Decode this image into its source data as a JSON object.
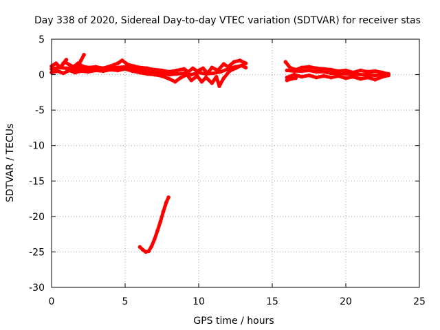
{
  "chart_data": {
    "type": "line",
    "title": "Day 338 of 2020, Sidereal Day-to-day VTEC variation (SDTVAR) for receiver stas",
    "xlabel": "GPS time / hours",
    "ylabel": "SDTVAR / TECUs",
    "xlim": [
      0,
      25
    ],
    "ylim": [
      -30,
      5
    ],
    "xticks": [
      0,
      5,
      10,
      15,
      20,
      25
    ],
    "yticks": [
      5,
      0,
      -5,
      -10,
      -15,
      -20,
      -25,
      -30
    ],
    "grid": true,
    "color": "#ff0000",
    "series": [
      {
        "name": "main-band-upper",
        "points": [
          [
            0.0,
            1.2
          ],
          [
            0.3,
            1.6
          ],
          [
            0.6,
            1.0
          ],
          [
            0.9,
            1.8
          ],
          [
            1.2,
            1.4
          ],
          [
            1.5,
            1.1
          ],
          [
            1.8,
            1.6
          ],
          [
            2.1,
            1.2
          ],
          [
            2.5,
            1.0
          ],
          [
            3.0,
            1.1
          ],
          [
            3.5,
            0.9
          ],
          [
            4.0,
            1.2
          ],
          [
            4.5,
            1.6
          ],
          [
            4.8,
            2.0
          ],
          [
            5.2,
            1.4
          ],
          [
            5.6,
            1.2
          ],
          [
            6.0,
            1.0
          ],
          [
            6.5,
            0.9
          ],
          [
            7.0,
            0.7
          ],
          [
            7.5,
            0.6
          ],
          [
            8.0,
            0.4
          ],
          [
            8.5,
            0.6
          ],
          [
            9.0,
            0.8
          ],
          [
            9.3,
            0.4
          ],
          [
            9.6,
            0.9
          ],
          [
            9.9,
            0.5
          ],
          [
            10.3,
            0.9
          ],
          [
            10.6,
            0.2
          ],
          [
            10.9,
            1.0
          ],
          [
            11.3,
            0.6
          ],
          [
            11.7,
            1.5
          ],
          [
            12.0,
            1.1
          ],
          [
            12.4,
            1.8
          ],
          [
            12.8,
            2.0
          ],
          [
            13.2,
            1.6
          ]
        ]
      },
      {
        "name": "main-band-lower",
        "points": [
          [
            0.0,
            0.3
          ],
          [
            0.4,
            0.5
          ],
          [
            0.8,
            0.2
          ],
          [
            1.2,
            0.6
          ],
          [
            1.6,
            0.3
          ],
          [
            2.0,
            0.5
          ],
          [
            2.5,
            0.4
          ],
          [
            3.0,
            0.6
          ],
          [
            3.5,
            0.5
          ],
          [
            4.0,
            0.7
          ],
          [
            4.5,
            0.6
          ],
          [
            5.0,
            0.8
          ],
          [
            5.5,
            0.5
          ],
          [
            6.0,
            0.3
          ],
          [
            6.5,
            0.1
          ],
          [
            7.0,
            0.0
          ],
          [
            7.5,
            -0.2
          ],
          [
            8.0,
            -0.6
          ],
          [
            8.4,
            -1.0
          ],
          [
            8.8,
            -0.4
          ],
          [
            9.2,
            0.0
          ],
          [
            9.5,
            -0.8
          ],
          [
            9.9,
            -0.2
          ],
          [
            10.2,
            -1.0
          ],
          [
            10.5,
            -0.4
          ],
          [
            10.9,
            -1.2
          ],
          [
            11.2,
            -0.3
          ],
          [
            11.4,
            -1.6
          ],
          [
            11.7,
            -0.5
          ],
          [
            12.1,
            0.5
          ],
          [
            12.5,
            0.9
          ],
          [
            12.9,
            1.3
          ],
          [
            13.2,
            1.0
          ]
        ]
      },
      {
        "name": "main-band-mid",
        "points": [
          [
            0.0,
            0.8
          ],
          [
            0.5,
            1.0
          ],
          [
            1.0,
            0.9
          ],
          [
            1.5,
            0.8
          ],
          [
            2.0,
            0.9
          ],
          [
            2.5,
            0.7
          ],
          [
            3.0,
            0.8
          ],
          [
            3.5,
            0.7
          ],
          [
            4.0,
            0.9
          ],
          [
            4.5,
            1.0
          ],
          [
            5.0,
            1.1
          ],
          [
            5.5,
            0.9
          ],
          [
            6.0,
            0.7
          ],
          [
            6.5,
            0.5
          ],
          [
            7.0,
            0.4
          ],
          [
            7.5,
            0.2
          ],
          [
            8.0,
            0.0
          ],
          [
            8.5,
            0.1
          ],
          [
            9.0,
            0.2
          ],
          [
            9.5,
            0.0
          ],
          [
            10.0,
            0.3
          ],
          [
            10.5,
            0.1
          ],
          [
            11.0,
            0.2
          ],
          [
            11.5,
            0.4
          ],
          [
            12.0,
            0.8
          ],
          [
            12.5,
            1.1
          ],
          [
            13.0,
            1.3
          ]
        ]
      },
      {
        "name": "early-spike",
        "points": [
          [
            1.6,
            0.5
          ],
          [
            1.8,
            1.3
          ],
          [
            2.0,
            2.0
          ],
          [
            2.2,
            2.8
          ]
        ]
      },
      {
        "name": "early-spike-2",
        "points": [
          [
            0.6,
            1.0
          ],
          [
            0.8,
            1.6
          ],
          [
            1.0,
            2.1
          ]
        ]
      },
      {
        "name": "late-band-upper",
        "points": [
          [
            15.9,
            1.8
          ],
          [
            16.2,
            1.0
          ],
          [
            16.6,
            0.7
          ],
          [
            17.0,
            1.0
          ],
          [
            17.5,
            1.1
          ],
          [
            18.0,
            0.9
          ],
          [
            18.5,
            0.8
          ],
          [
            19.0,
            0.7
          ],
          [
            19.5,
            0.5
          ],
          [
            20.0,
            0.6
          ],
          [
            20.5,
            0.3
          ],
          [
            21.0,
            0.6
          ],
          [
            21.5,
            0.4
          ],
          [
            22.0,
            0.5
          ],
          [
            22.5,
            0.3
          ],
          [
            22.9,
            0.1
          ]
        ]
      },
      {
        "name": "late-band-lower",
        "points": [
          [
            16.0,
            -0.4
          ],
          [
            16.5,
            0.0
          ],
          [
            17.0,
            -0.3
          ],
          [
            17.5,
            -0.1
          ],
          [
            18.0,
            -0.4
          ],
          [
            18.5,
            -0.2
          ],
          [
            19.0,
            -0.4
          ],
          [
            19.5,
            -0.2
          ],
          [
            20.0,
            -0.5
          ],
          [
            20.5,
            -0.3
          ],
          [
            21.0,
            -0.6
          ],
          [
            21.5,
            -0.4
          ],
          [
            22.0,
            -0.7
          ],
          [
            22.5,
            -0.3
          ],
          [
            22.9,
            -0.1
          ]
        ]
      },
      {
        "name": "late-band-mid",
        "points": [
          [
            16.0,
            0.6
          ],
          [
            16.5,
            0.5
          ],
          [
            17.0,
            0.5
          ],
          [
            17.5,
            0.6
          ],
          [
            18.0,
            0.4
          ],
          [
            18.5,
            0.4
          ],
          [
            19.0,
            0.2
          ],
          [
            19.5,
            0.2
          ],
          [
            20.0,
            0.1
          ],
          [
            20.5,
            0.1
          ],
          [
            21.0,
            0.0
          ],
          [
            21.5,
            0.0
          ],
          [
            22.0,
            -0.1
          ],
          [
            22.5,
            0.0
          ],
          [
            22.9,
            0.0
          ]
        ]
      },
      {
        "name": "late-start-stub",
        "points": [
          [
            16.0,
            -0.8
          ],
          [
            16.3,
            -0.6
          ],
          [
            16.6,
            -0.5
          ]
        ]
      },
      {
        "name": "anomalous-curve",
        "points": [
          [
            6.0,
            -24.3
          ],
          [
            6.2,
            -24.7
          ],
          [
            6.4,
            -25.0
          ],
          [
            6.6,
            -24.9
          ],
          [
            6.8,
            -24.2
          ],
          [
            7.0,
            -23.2
          ],
          [
            7.2,
            -22.0
          ],
          [
            7.4,
            -20.7
          ],
          [
            7.6,
            -19.3
          ],
          [
            7.8,
            -18.0
          ],
          [
            7.95,
            -17.3
          ]
        ]
      }
    ]
  }
}
